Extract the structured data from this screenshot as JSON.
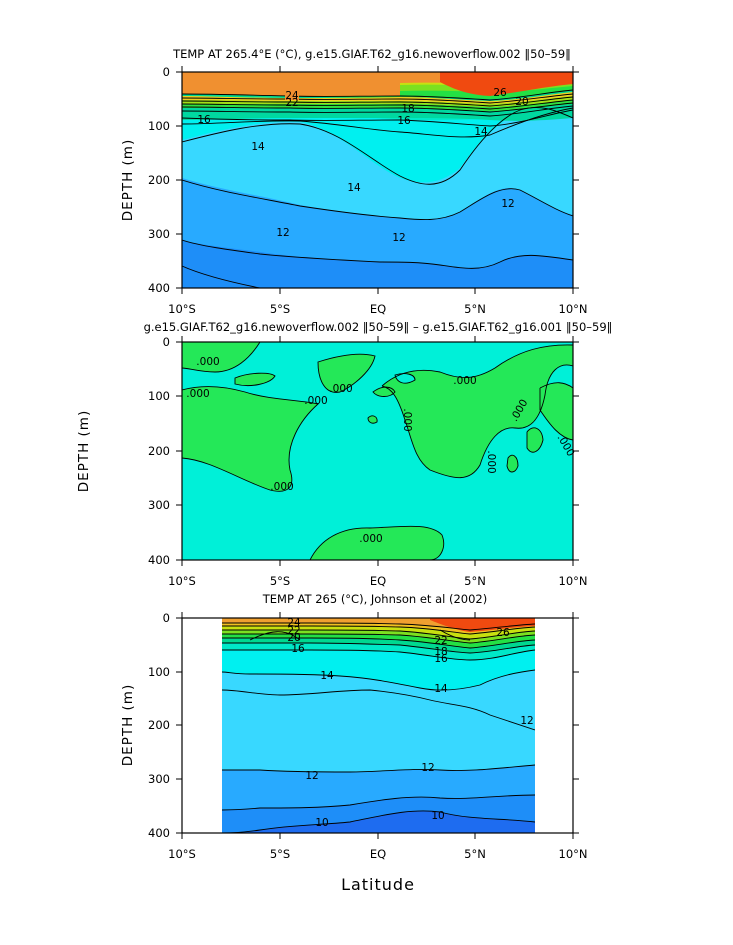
{
  "figure": {
    "xlabel": "Latitude",
    "panels": [
      {
        "title": "TEMP AT 265.4°E (°C), g.e15.GIAF.T62_g16.newoverflow.002 ‖50–59‖",
        "ylabel": "DEPTH (m)",
        "yticks": [
          "0",
          "100",
          "200",
          "300",
          "400"
        ],
        "xticks": [
          "10°S",
          "5°S",
          "EQ",
          "5°N",
          "10°N"
        ]
      },
      {
        "title": "g.e15.GIAF.T62_g16.newoverflow.002 ‖50–59‖ – g.e15.GIAF.T62_g16.001 ‖50–59‖",
        "ylabel": "DEPTH (m)",
        "yticks": [
          "0",
          "100",
          "200",
          "300",
          "400"
        ],
        "xticks": [
          "10°S",
          "5°S",
          "EQ",
          "5°N",
          "10°N"
        ]
      },
      {
        "title": "TEMP AT 265 (°C), Johnson et al (2002)",
        "ylabel": "DEPTH (m)",
        "yticks": [
          "0",
          "100",
          "200",
          "300",
          "400"
        ],
        "xticks": [
          "10°S",
          "5°S",
          "EQ",
          "5°N",
          "10°N"
        ]
      }
    ]
  },
  "chart_data": [
    {
      "type": "contour",
      "title": "TEMP AT 265.4°E (°C), g.e15.GIAF.T62_g16.newoverflow.002 ‖50–59‖",
      "ylabel": "DEPTH (m)",
      "xlim": [
        -10,
        10
      ],
      "ylim": [
        400,
        0
      ],
      "x_ticks": [
        "10°S",
        "5°S",
        "EQ",
        "5°N",
        "10°N"
      ],
      "y_ticks": [
        0,
        100,
        200,
        300,
        400
      ],
      "contour_labels": [
        "26",
        "24",
        "22",
        "20",
        "18",
        "16",
        "14",
        "12"
      ],
      "isotherms": [
        {
          "level": 26,
          "x": [
            -10,
            -6,
            -2,
            2,
            5,
            8,
            10
          ],
          "depth": [
            15,
            18,
            15,
            8,
            5,
            5,
            5
          ]
        },
        {
          "level": 24,
          "x": [
            -10,
            -6,
            -2,
            2,
            5,
            8,
            10
          ],
          "depth": [
            42,
            48,
            45,
            33,
            25,
            20,
            18
          ]
        },
        {
          "level": 22,
          "x": [
            -10,
            -6,
            -2,
            2,
            5,
            8,
            10
          ],
          "depth": [
            52,
            56,
            55,
            44,
            42,
            30,
            27
          ]
        },
        {
          "level": 20,
          "x": [
            -10,
            -6,
            -2,
            2,
            5,
            8,
            10
          ],
          "depth": [
            62,
            64,
            64,
            54,
            52,
            40,
            35
          ]
        },
        {
          "level": 18,
          "x": [
            -10,
            -6,
            -2,
            2,
            5,
            8,
            10
          ],
          "depth": [
            72,
            73,
            73,
            64,
            64,
            50,
            45
          ]
        },
        {
          "level": 16,
          "x": [
            -10,
            -6,
            -2,
            2,
            5,
            8,
            10
          ],
          "depth": [
            90,
            90,
            90,
            88,
            88,
            72,
            60
          ]
        },
        {
          "level": 14,
          "x": [
            -10,
            -6,
            -2,
            2,
            5,
            8,
            10
          ],
          "depth": [
            150,
            135,
            130,
            220,
            160,
            60,
            45
          ]
        },
        {
          "level": 12,
          "x": [
            -10,
            -6,
            -2,
            2,
            5,
            8,
            10
          ],
          "depth": [
            240,
            280,
            300,
            305,
            280,
            220,
            210
          ]
        },
        {
          "level": 10,
          "x": [
            -10,
            -6,
            -2,
            2,
            5,
            8,
            10
          ],
          "depth": [
            360,
            410,
            400,
            400,
            400,
            400,
            400
          ]
        }
      ]
    },
    {
      "type": "contour",
      "title": "g.e15.GIAF.T62_g16.newoverflow.002 ‖50–59‖ – g.e15.GIAF.T62_g16.001 ‖50–59‖",
      "ylabel": "DEPTH (m)",
      "xlim": [
        -10,
        10
      ],
      "ylim": [
        400,
        0
      ],
      "x_ticks": [
        "10°S",
        "5°S",
        "EQ",
        "5°N",
        "10°N"
      ],
      "y_ticks": [
        0,
        100,
        200,
        300,
        400
      ],
      "contour_labels": [
        ".000"
      ],
      "levels": [
        0
      ],
      "note_regions": [
        "positive (green)",
        "negative (cyan)"
      ]
    },
    {
      "type": "contour",
      "title": "TEMP AT 265 (°C), Johnson et al (2002)",
      "ylabel": "DEPTH (m)",
      "xlim": [
        -10,
        10
      ],
      "ylim": [
        400,
        0
      ],
      "data_xrange": [
        -8,
        8
      ],
      "x_ticks": [
        "10°S",
        "5°S",
        "EQ",
        "5°N",
        "10°N"
      ],
      "y_ticks": [
        0,
        100,
        200,
        300,
        400
      ],
      "contour_labels": [
        "26",
        "24",
        "22",
        "20",
        "18",
        "16",
        "14",
        "12",
        "10"
      ],
      "isotherms": [
        {
          "level": 26,
          "x": [
            -8,
            -4,
            0,
            3,
            5,
            8
          ],
          "depth": [
            5,
            5,
            5,
            5,
            5,
            5
          ]
        },
        {
          "level": 24,
          "x": [
            -8,
            -4,
            0,
            3,
            5,
            8
          ],
          "depth": [
            20,
            18,
            12,
            10,
            25,
            12
          ]
        },
        {
          "level": 22,
          "x": [
            -8,
            -4,
            0,
            3,
            5,
            8
          ],
          "depth": [
            30,
            30,
            25,
            20,
            35,
            22
          ]
        },
        {
          "level": 20,
          "x": [
            -8,
            -4,
            0,
            3,
            5,
            8
          ],
          "depth": [
            38,
            40,
            35,
            30,
            45,
            32
          ]
        },
        {
          "level": 18,
          "x": [
            -8,
            -4,
            0,
            3,
            5,
            8
          ],
          "depth": [
            45,
            48,
            45,
            40,
            55,
            40
          ]
        },
        {
          "level": 16,
          "x": [
            -8,
            -4,
            0,
            3,
            5,
            8
          ],
          "depth": [
            60,
            65,
            60,
            60,
            70,
            55
          ]
        },
        {
          "level": 14,
          "x": [
            -8,
            -4,
            0,
            3,
            5,
            8
          ],
          "depth": [
            100,
            105,
            115,
            130,
            110,
            80
          ]
        },
        {
          "level": 12,
          "x": [
            -8,
            -4,
            0,
            3,
            5,
            8
          ],
          "depth": [
            280,
            275,
            275,
            270,
            260,
            240
          ]
        },
        {
          "level": 10,
          "x": [
            -8,
            -4,
            0,
            3,
            5,
            8
          ],
          "depth": [
            385,
            375,
            365,
            360,
            370,
            360
          ]
        }
      ]
    }
  ]
}
